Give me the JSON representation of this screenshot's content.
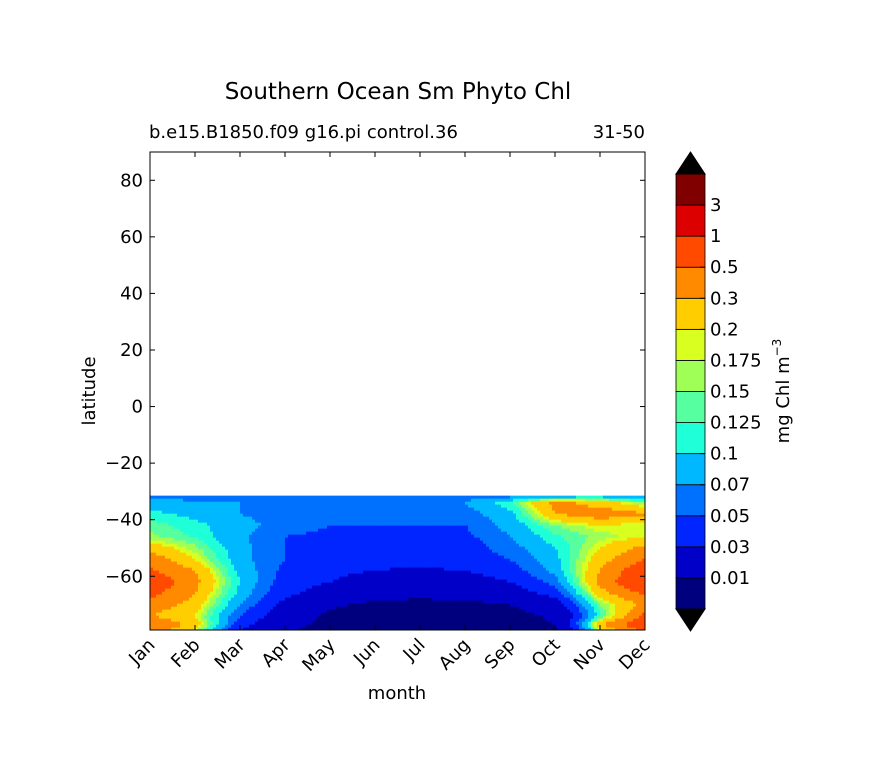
{
  "chart_data": {
    "type": "heatmap",
    "title": "Southern Ocean Sm Phyto Chl",
    "subtitle_left": "b.e15.B1850.f09 g16.pi control.36",
    "subtitle_right": "31-50",
    "xlabel": "month",
    "ylabel": "latitude",
    "x_categories": [
      "Jan",
      "Feb",
      "Mar",
      "Apr",
      "May",
      "Jun",
      "Jul",
      "Aug",
      "Sep",
      "Oct",
      "Nov",
      "Dec"
    ],
    "y_ticks": [
      80,
      60,
      40,
      20,
      0,
      -20,
      -40,
      -60
    ],
    "y_tick_labels": [
      "80",
      "60",
      "40",
      "20",
      "0",
      "−20",
      "−40",
      "−60"
    ],
    "ylim": [
      -79,
      90
    ],
    "data_lat_range": [
      -79,
      -31.5
    ],
    "colorbar": {
      "label": "mg Chl m",
      "label_exponent": "−3",
      "extend": "both",
      "levels": [
        "0.01",
        "0.03",
        "0.05",
        "0.07",
        "0.1",
        "0.125",
        "0.15",
        "0.175",
        "0.2",
        "0.3",
        "0.5",
        "1",
        "3"
      ],
      "colors": [
        "#00007f",
        "#0000c8",
        "#0025ff",
        "#0070ff",
        "#00b8ff",
        "#1fffd8",
        "#56ff9f",
        "#9fff56",
        "#d8ff1f",
        "#ffcd00",
        "#ff8a00",
        "#ff4a00",
        "#dd0000",
        "#800000"
      ],
      "under_color": "#000000",
      "over_color": "#000000"
    },
    "field": {
      "months": [
        "Jan",
        "Feb",
        "Mar",
        "Apr",
        "May",
        "Jun",
        "Jul",
        "Aug",
        "Sep",
        "Oct",
        "Nov",
        "Dec"
      ],
      "latitudes": [
        -31.5,
        -34,
        -38,
        -42,
        -46,
        -50,
        -54,
        -58,
        -62,
        -66,
        -70,
        -74,
        -77,
        -79
      ],
      "values": [
        [
          0.06,
          0.06,
          0.05,
          0.05,
          0.05,
          0.05,
          0.05,
          0.06,
          0.06,
          0.07,
          0.08,
          0.06
        ],
        [
          0.08,
          0.075,
          0.07,
          0.06,
          0.06,
          0.06,
          0.06,
          0.07,
          0.12,
          0.35,
          0.25,
          0.15
        ],
        [
          0.11,
          0.09,
          0.07,
          0.06,
          0.06,
          0.05,
          0.05,
          0.06,
          0.09,
          0.3,
          0.4,
          0.32
        ],
        [
          0.14,
          0.11,
          0.08,
          0.06,
          0.05,
          0.05,
          0.05,
          0.05,
          0.08,
          0.15,
          0.2,
          0.17
        ],
        [
          0.16,
          0.12,
          0.075,
          0.05,
          0.045,
          0.04,
          0.04,
          0.045,
          0.07,
          0.12,
          0.16,
          0.2
        ],
        [
          0.25,
          0.16,
          0.08,
          0.05,
          0.04,
          0.04,
          0.035,
          0.04,
          0.06,
          0.1,
          0.2,
          0.35
        ],
        [
          0.4,
          0.2,
          0.08,
          0.05,
          0.04,
          0.035,
          0.035,
          0.04,
          0.05,
          0.09,
          0.25,
          0.5
        ],
        [
          0.55,
          0.3,
          0.09,
          0.045,
          0.035,
          0.03,
          0.028,
          0.03,
          0.04,
          0.08,
          0.3,
          0.8
        ],
        [
          0.8,
          0.35,
          0.1,
          0.04,
          0.03,
          0.022,
          0.02,
          0.022,
          0.03,
          0.06,
          0.35,
          1.0
        ],
        [
          0.6,
          0.3,
          0.09,
          0.035,
          0.022,
          0.015,
          0.012,
          0.015,
          0.02,
          0.04,
          0.25,
          0.55
        ],
        [
          0.4,
          0.25,
          0.07,
          0.025,
          0.012,
          0.008,
          0.008,
          0.008,
          0.01,
          0.02,
          0.15,
          0.35
        ],
        [
          0.3,
          0.2,
          0.05,
          0.02,
          0.008,
          0.006,
          0.006,
          0.006,
          0.007,
          0.012,
          0.12,
          0.6
        ],
        [
          0.5,
          0.25,
          0.04,
          0.015,
          0.007,
          0.005,
          0.005,
          0.005,
          0.006,
          0.01,
          0.3,
          0.8
        ],
        [
          0.4,
          0.2,
          0.03,
          0.012,
          0.006,
          0.005,
          0.005,
          0.005,
          0.005,
          0.008,
          0.2,
          0.6
        ]
      ]
    }
  }
}
